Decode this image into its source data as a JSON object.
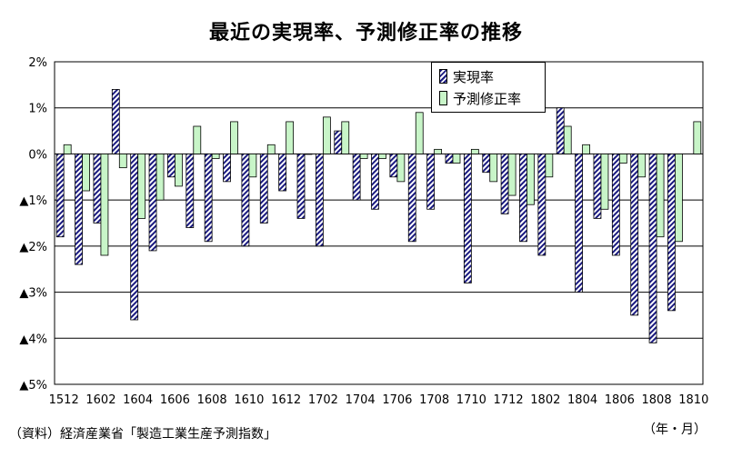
{
  "title": "最近の実現率、予測修正率の推移",
  "source": "（資料）経済産業省「製造工業生産予測指数」",
  "unit_label": "（年・月）",
  "colors": {
    "actual_stroke": "#1a1a80",
    "forecast_fill": "#c8f5c8",
    "grid": "#000000"
  },
  "chart_data": {
    "type": "bar",
    "title": "最近の実現率、予測修正率の推移",
    "xlabel": "（年・月）",
    "ylabel": "",
    "ylim": [
      -5,
      2
    ],
    "y_ticks": [
      2,
      1,
      0,
      -1,
      -2,
      -3,
      -4,
      -5
    ],
    "y_tick_labels": [
      "2%",
      "1%",
      "0%",
      "▲1%",
      "▲2%",
      "▲3%",
      "▲4%",
      "▲5%"
    ],
    "grid": true,
    "legend": "top-right",
    "categories": [
      "1512",
      "1601",
      "1602",
      "1603",
      "1604",
      "1605",
      "1606",
      "1607",
      "1608",
      "1609",
      "1610",
      "1611",
      "1612",
      "1701",
      "1702",
      "1703",
      "1704",
      "1705",
      "1706",
      "1707",
      "1708",
      "1709",
      "1710",
      "1711",
      "1712",
      "1801",
      "1802",
      "1803",
      "1804",
      "1805",
      "1806",
      "1807",
      "1808",
      "1809",
      "1810"
    ],
    "x_tick_labels": [
      "1512",
      "1602",
      "1604",
      "1606",
      "1608",
      "1610",
      "1612",
      "1702",
      "1704",
      "1706",
      "1708",
      "1710",
      "1712",
      "1802",
      "1804",
      "1806",
      "1808",
      "1810"
    ],
    "series": [
      {
        "name": "実現率",
        "values": [
          -1.8,
          -2.4,
          -1.5,
          1.4,
          -3.6,
          -2.1,
          -0.5,
          -1.6,
          -1.9,
          -0.6,
          -2.0,
          -1.5,
          -0.8,
          -1.4,
          -2.0,
          0.5,
          -1.0,
          -1.2,
          -0.5,
          -1.9,
          -1.2,
          -0.2,
          -2.8,
          -0.4,
          -1.3,
          -1.9,
          -2.2,
          1.0,
          -3.0,
          -1.4,
          -2.2,
          -3.5,
          -4.1,
          -3.4,
          null
        ]
      },
      {
        "name": "予測修正率",
        "values": [
          0.2,
          -0.8,
          -2.2,
          -0.3,
          -1.4,
          -1.0,
          -0.7,
          0.6,
          -0.1,
          0.7,
          -0.5,
          0.2,
          0.7,
          0.0,
          0.8,
          0.7,
          -0.1,
          -0.1,
          -0.6,
          0.9,
          0.1,
          -0.2,
          0.1,
          -0.6,
          -0.9,
          -1.1,
          -0.5,
          0.6,
          0.2,
          -1.2,
          -0.2,
          -0.5,
          -1.8,
          -1.9,
          0.7
        ]
      }
    ]
  }
}
